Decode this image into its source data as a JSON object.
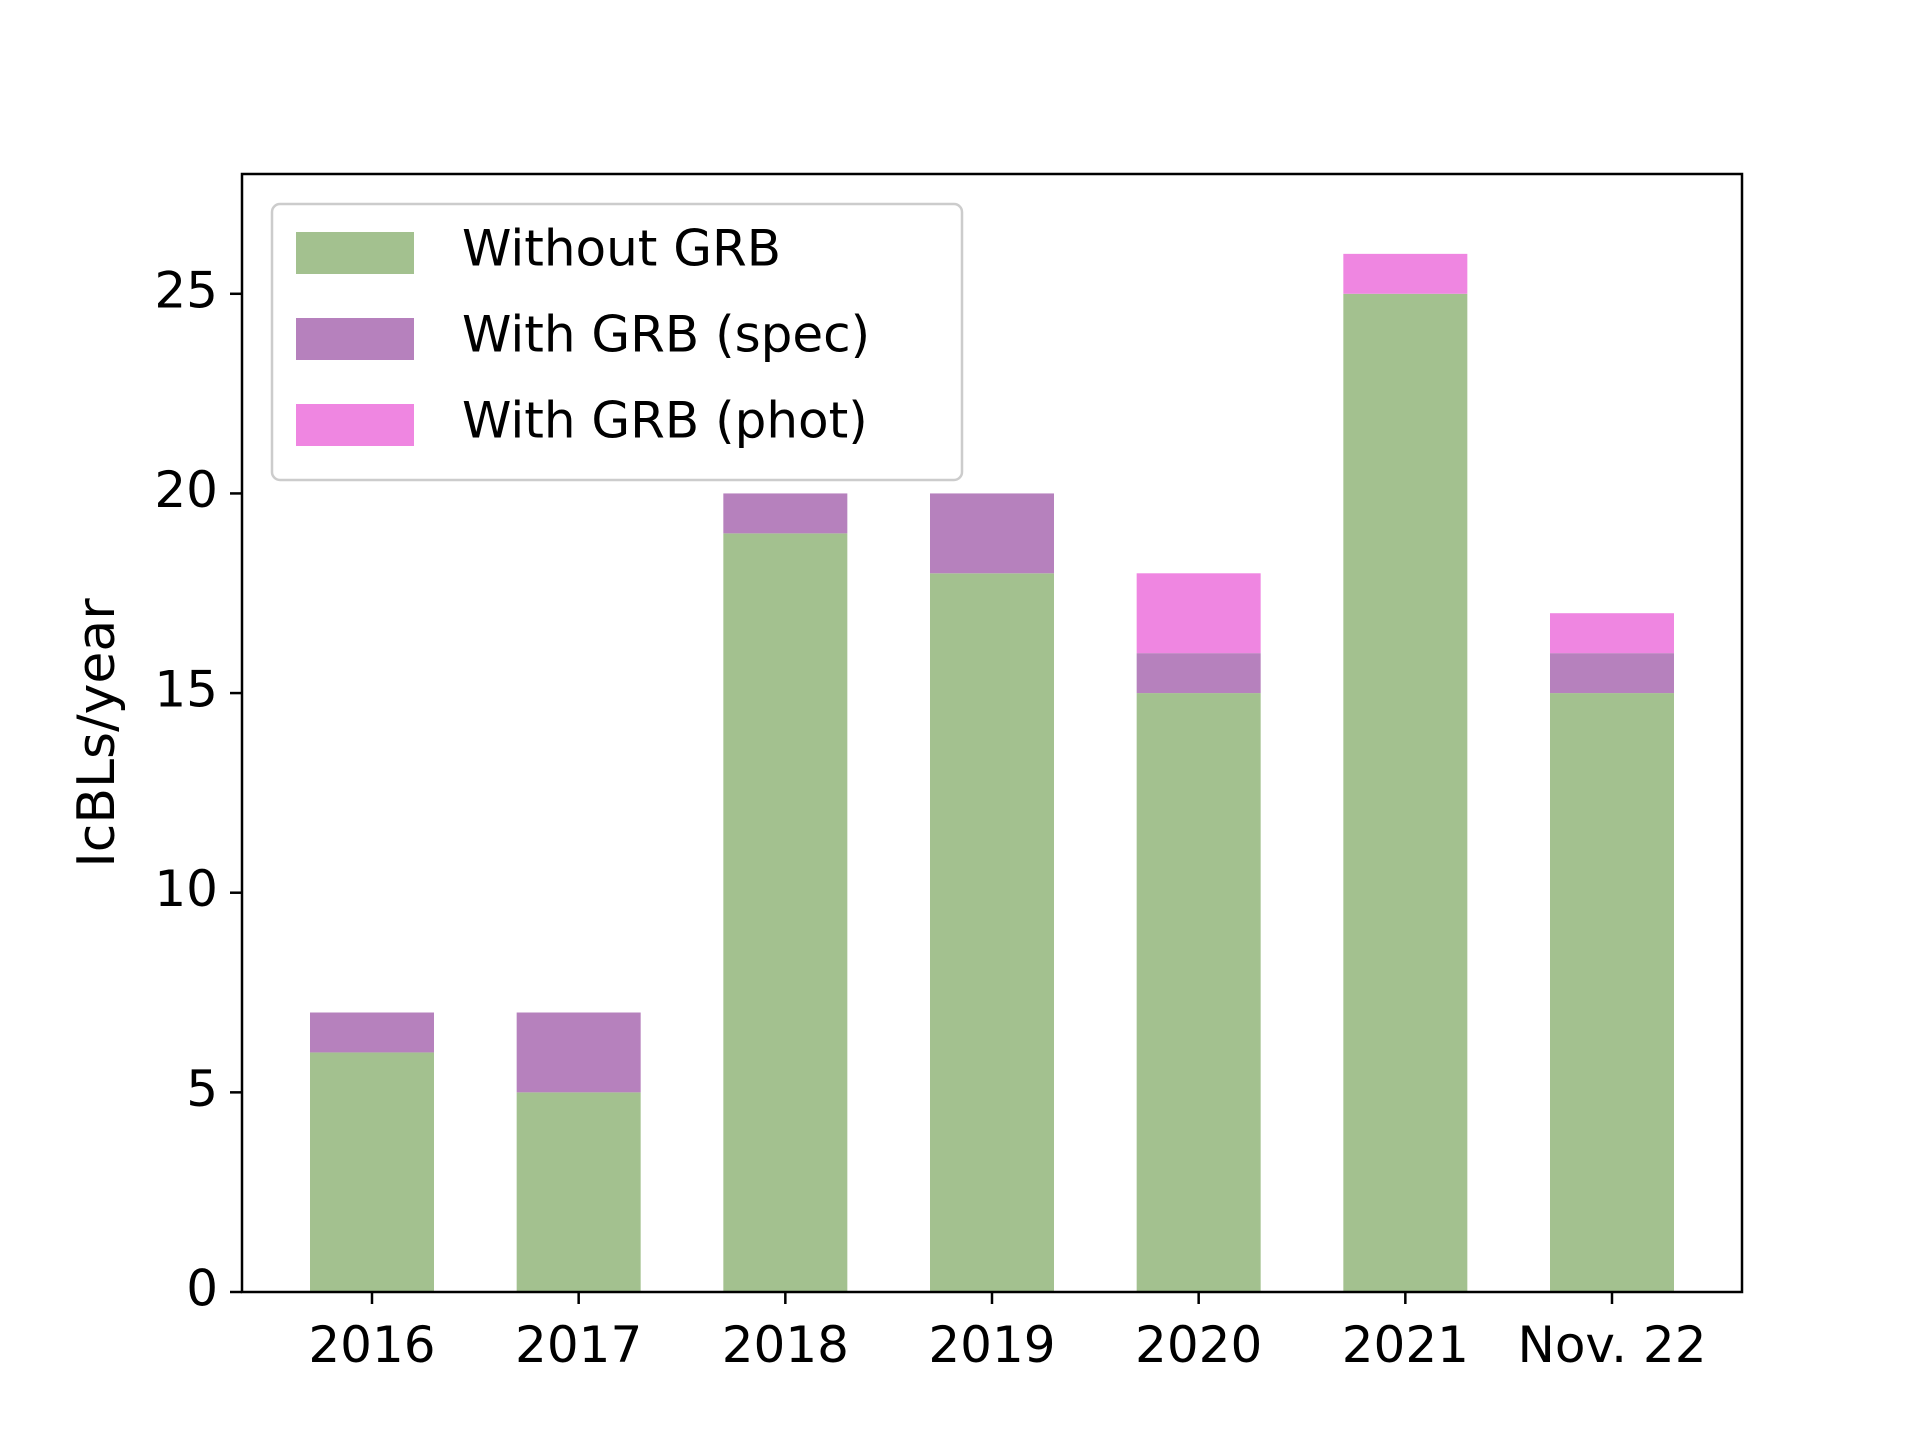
{
  "chart_data": {
    "type": "bar",
    "stacked": true,
    "title": "",
    "xlabel": "",
    "ylabel": "IcBLs/year",
    "ylim": [
      0,
      28
    ],
    "yticks": [
      0,
      5,
      10,
      15,
      20,
      25
    ],
    "categories": [
      "2016",
      "2017",
      "2018",
      "2019",
      "2020",
      "2021",
      "Nov. 22"
    ],
    "series": [
      {
        "name": "Without GRB",
        "color": "#a3c18f",
        "values": [
          6,
          5,
          19,
          18,
          15,
          25,
          15
        ]
      },
      {
        "name": "With GRB (spec)",
        "color": "#b681bd",
        "values": [
          1,
          2,
          1,
          2,
          1,
          0,
          1
        ]
      },
      {
        "name": "With GRB (phot)",
        "color": "#ef86e1",
        "values": [
          0,
          0,
          0,
          0,
          2,
          1,
          1
        ]
      }
    ],
    "legend_position": "top-left",
    "grid": false
  }
}
